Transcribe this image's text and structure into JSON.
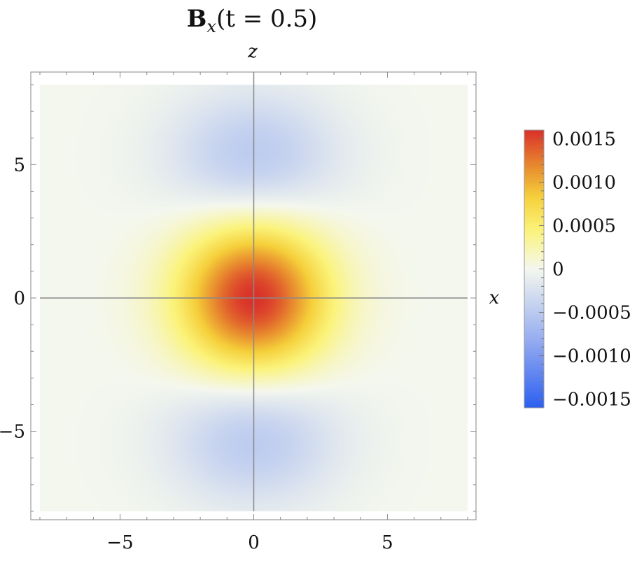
{
  "chart_data": {
    "type": "heatmap",
    "title": {
      "bold": "B",
      "subscript": "x",
      "rest": "(t = 0.5)"
    },
    "xlabel": "x",
    "ylabel": "z",
    "xlim": [
      -8,
      8
    ],
    "ylim": [
      -8,
      8
    ],
    "x_ticks": [
      {
        "value": -5,
        "label": "−5"
      },
      {
        "value": 0,
        "label": "0"
      },
      {
        "value": 5,
        "label": "5"
      }
    ],
    "y_ticks": [
      {
        "value": 5,
        "label": "5"
      },
      {
        "value": 0,
        "label": "0"
      },
      {
        "value": -5,
        "label": "−5"
      }
    ],
    "colorbar": {
      "range": [
        -0.0016,
        0.0016
      ],
      "ticks": [
        {
          "value": 0.0015,
          "label": "0.0015"
        },
        {
          "value": 0.001,
          "label": "0.0010"
        },
        {
          "value": 0.0005,
          "label": "0.0005"
        },
        {
          "value": 0,
          "label": "0"
        },
        {
          "value": -0.0005,
          "label": "−0.0005"
        },
        {
          "value": -0.001,
          "label": "−0.0010"
        },
        {
          "value": -0.0015,
          "label": "−0.0015"
        }
      ],
      "colors": [
        "#2c5ff0",
        "#98aef0",
        "#f4f7ee",
        "#fbf37a",
        "#f5cf3a",
        "#e88a2e",
        "#d9302a"
      ]
    },
    "field_features": [
      {
        "type": "peak",
        "x": 0,
        "z": 0,
        "value": 0.0016
      },
      {
        "type": "trough",
        "x": 0,
        "z": 5.3,
        "value": -0.0005
      },
      {
        "type": "trough",
        "x": 0,
        "z": -5.3,
        "value": -0.0005
      }
    ],
    "grid": false,
    "axes_lines_at_origin": true
  }
}
